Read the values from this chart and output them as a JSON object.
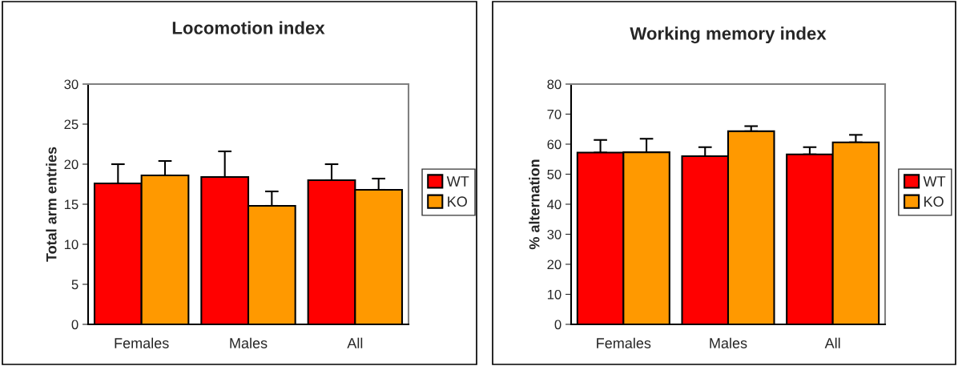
{
  "chart_data": [
    {
      "type": "bar",
      "title": "Locomotion index",
      "ylabel": "Total arm entries",
      "categories": [
        "Females",
        "Males",
        "All"
      ],
      "ylim": [
        0,
        30
      ],
      "yticks": [
        0,
        5,
        10,
        15,
        20,
        25,
        30
      ],
      "legend": "right",
      "grid": false,
      "series": [
        {
          "name": "WT",
          "color": "#ff0000",
          "values": [
            17.6,
            18.4,
            18.0
          ],
          "errors": [
            [
              17.6,
              20.0
            ],
            [
              18.4,
              21.6
            ],
            [
              18.0,
              20.0
            ]
          ]
        },
        {
          "name": "KO",
          "color": "#ff9900",
          "values": [
            18.6,
            14.8,
            16.8
          ],
          "errors": [
            [
              18.6,
              20.4
            ],
            [
              14.8,
              16.6
            ],
            [
              16.8,
              18.2
            ]
          ]
        }
      ]
    },
    {
      "type": "bar",
      "title": "Working memory index",
      "ylabel": "% alternation",
      "categories": [
        "Females",
        "Males",
        "All"
      ],
      "ylim": [
        0,
        80
      ],
      "yticks": [
        0,
        10,
        20,
        30,
        40,
        50,
        60,
        70,
        80
      ],
      "legend": "right",
      "grid": false,
      "series": [
        {
          "name": "WT",
          "color": "#ff0000",
          "values": [
            57.2,
            56.0,
            56.6
          ],
          "errors": [
            [
              57.2,
              61.4
            ],
            [
              56.0,
              59.0
            ],
            [
              56.6,
              59.0
            ]
          ]
        },
        {
          "name": "KO",
          "color": "#ff9900",
          "values": [
            57.3,
            64.3,
            60.6
          ],
          "errors": [
            [
              57.3,
              61.8
            ],
            [
              64.3,
              66.0
            ],
            [
              60.6,
              63.1
            ]
          ]
        }
      ]
    }
  ]
}
